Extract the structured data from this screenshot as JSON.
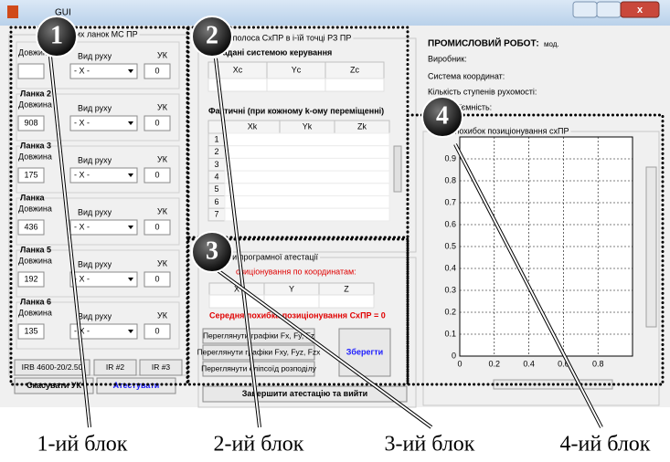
{
  "window": {
    "title": "GUI"
  },
  "links_panel": {
    "title": "ктивних ланок МС ПР",
    "headers": [
      "Довжина",
      "Вид руху",
      "УК"
    ],
    "links": [
      {
        "motion": "- X -",
        "uk": "0"
      },
      {
        "label": "Ланка 2",
        "length": "908",
        "motion": "- X -",
        "uk": "0"
      },
      {
        "label": "Ланка 3",
        "length": "175",
        "motion": "- X -",
        "uk": "0"
      },
      {
        "label": "Ланка",
        "length": "436",
        "motion": "- X -",
        "uk": "0"
      },
      {
        "label": "Ланка 5",
        "length": "192",
        "motion": "- X -",
        "uk": "0"
      },
      {
        "label": "Ланка 6",
        "length": "135",
        "motion": "- X -",
        "uk": "0"
      }
    ],
    "presets": [
      "IRB 4600-20/2.50",
      "IR #2",
      "IR #3"
    ],
    "buttons": [
      "Скасувати УК",
      "Атестувати"
    ]
  },
  "coords_panel": {
    "title": "ити полоса СхПР в і-їй точці РЗ ПР",
    "set_label": "Задані системою керування",
    "set_headers": [
      "Xc",
      "Yc",
      "Zc"
    ],
    "actual_label": "Фактичні (при кожному k-ому переміщенні)",
    "actual_headers": [
      "Xk",
      "Yk",
      "Zk"
    ],
    "rows": [
      "1",
      "2",
      "3",
      "4",
      "5",
      "6",
      "7"
    ]
  },
  "results_panel": {
    "title": "ти програмної атестації",
    "error_label": "озиціонування по координатам:",
    "headers": [
      "X",
      "Y",
      "Z"
    ],
    "mean_error": "Середня похибка позиціонування СхПР = 0",
    "buttons": [
      "Переглянути графіки Fx, Fy, Fz",
      "Переглянути графіки Fxy, Fyz, Fzx",
      "Переглянути еліпсоїд розподілу"
    ],
    "save": "Зберегти",
    "finish": "Завершити атестацію та вийти"
  },
  "robot_info": {
    "heading": "ПРОМИСЛОВИЙ РОБОТ:",
    "model": "мод.",
    "fields": [
      "Виробник:",
      "Система координат:",
      "Кількість ступенів рухомості:",
      "підїємність:"
    ]
  },
  "plot_panel": {
    "title": "а похибок позиціонування схПР",
    "xlim": [
      0,
      1
    ],
    "ylim": [
      0,
      1
    ],
    "xticks": [
      0,
      0.2,
      0.4,
      0.6,
      0.8
    ],
    "yticks": [
      0,
      0.1,
      0.2,
      0.3,
      0.4,
      0.5,
      0.6,
      0.7,
      0.8,
      0.9
    ],
    "grid": true
  },
  "annotations": {
    "markers": [
      "1",
      "2",
      "3",
      "4"
    ],
    "captions": [
      "1-ий блок",
      "2-ий блок",
      "3-ий блок",
      "4-ий блок"
    ]
  }
}
